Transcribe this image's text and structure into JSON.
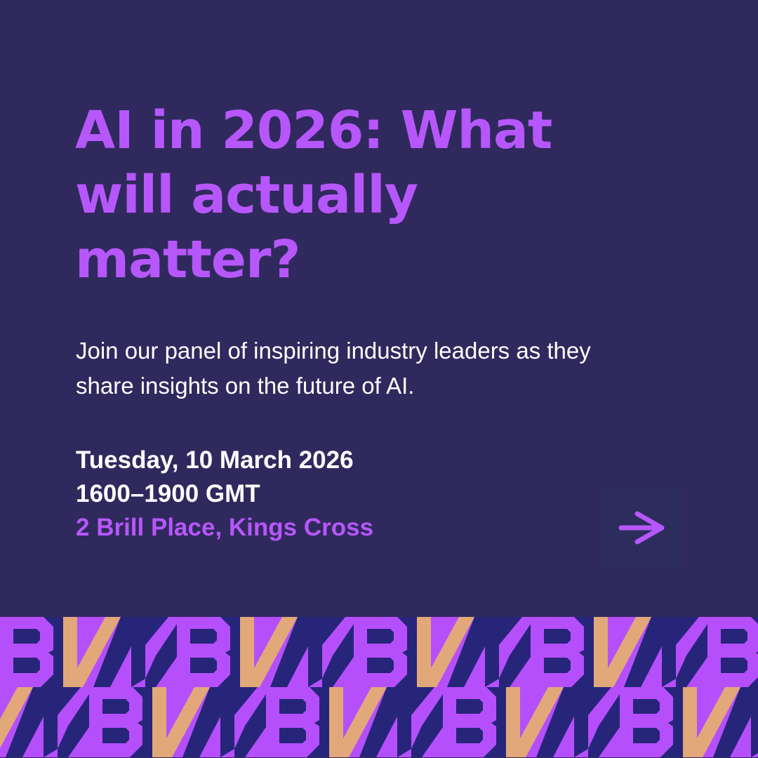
{
  "headline": {
    "line1": "AI in 2026: What",
    "line2": "will actually",
    "line3": "matter?"
  },
  "description": "Join our panel of inspiring industry leaders as they share insights on the future of AI.",
  "event": {
    "date": "Tuesday, 10 March 2026",
    "time": "1600–1900 GMT",
    "location": "2 Brill Place, Kings Cross"
  },
  "arrow_button": {
    "icon": "arrow-right-icon"
  },
  "pattern": {
    "letters": "BVN",
    "icon": "bvn-logo-pattern"
  },
  "colors": {
    "background": "#30295d",
    "accent": "#b657fb",
    "pattern_purple": "#b54ffc",
    "pattern_navy": "#27257a",
    "pattern_tan": "#e2a87a"
  }
}
